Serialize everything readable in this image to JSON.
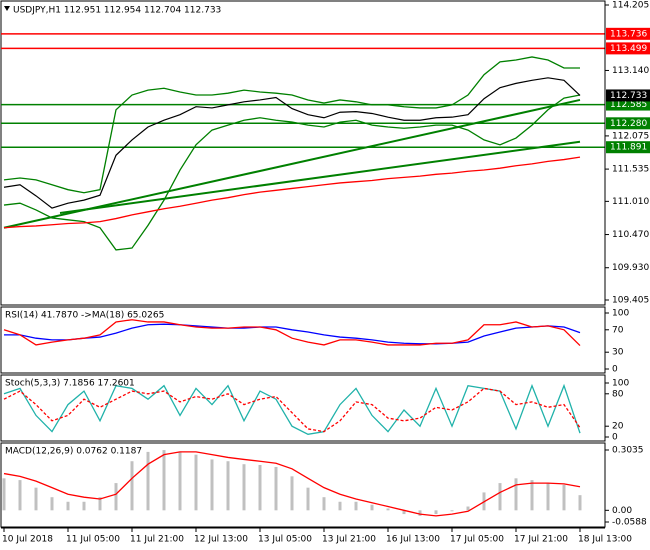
{
  "chart_data": [
    {
      "type": "line",
      "title": "USDJPY,H1  112.951 112.954 112.704 112.733",
      "ylim": [
        109.405,
        114.205
      ],
      "yticks": [
        114.205,
        {
          "value": 113.14,
          "label": "113.140"
        },
        112.075,
        111.535,
        {
          "value": 111.01,
          "label": "111.010"
        },
        {
          "value": 110.47,
          "label": "110.470"
        },
        {
          "value": 109.93,
          "label": "109.930"
        },
        109.405
      ],
      "levels": [
        {
          "value": 113.736,
          "color": "#ff0000"
        },
        {
          "value": 113.499,
          "color": "#ff0000"
        },
        {
          "value": 112.585,
          "color": "#008000"
        },
        {
          "value": 112.28,
          "label": "112.280",
          "color": "#008000"
        },
        {
          "value": 111.891,
          "color": "#008000"
        }
      ],
      "last_price": 112.733,
      "trendlines": [
        {
          "x": [
            0,
            36
          ],
          "values": [
            110.58,
            112.66
          ],
          "color": "#008000"
        },
        {
          "x": [
            3.5,
            36
          ],
          "values": [
            110.82,
            111.98
          ],
          "color": "#008000"
        }
      ],
      "series": [
        {
          "color": "#008000",
          "style": "line",
          "values": [
            111.36,
            111.39,
            111.36,
            111.28,
            111.2,
            111.15,
            111.2,
            112.5,
            112.74,
            112.82,
            112.85,
            112.79,
            112.74,
            112.74,
            112.77,
            112.82,
            112.79,
            112.77,
            112.74,
            112.66,
            112.61,
            112.66,
            112.63,
            112.58,
            112.58,
            112.55,
            112.53,
            112.53,
            112.58,
            112.74,
            113.07,
            113.28,
            113.31,
            113.36,
            113.31,
            113.18,
            113.18
          ]
        },
        {
          "color": "#008000",
          "style": "line",
          "values": [
            110.95,
            110.98,
            110.87,
            110.74,
            110.71,
            110.68,
            110.58,
            110.22,
            110.25,
            110.62,
            111.03,
            111.52,
            111.93,
            112.17,
            112.25,
            112.33,
            112.37,
            112.33,
            112.3,
            112.25,
            112.22,
            112.3,
            112.33,
            112.25,
            112.22,
            112.2,
            112.22,
            112.25,
            112.25,
            112.17,
            112.01,
            111.93,
            112.04,
            112.25,
            112.5,
            112.69,
            112.74
          ]
        },
        {
          "color": "#ff0000",
          "style": "line",
          "values": [
            110.58,
            110.6,
            110.61,
            110.63,
            110.65,
            110.66,
            110.68,
            110.73,
            110.79,
            110.84,
            110.89,
            110.93,
            110.98,
            111.03,
            111.07,
            111.12,
            111.16,
            111.19,
            111.22,
            111.25,
            111.28,
            111.31,
            111.33,
            111.35,
            111.38,
            111.4,
            111.42,
            111.45,
            111.47,
            111.5,
            111.52,
            111.55,
            111.59,
            111.62,
            111.66,
            111.69,
            111.73
          ]
        },
        {
          "color": "#000000",
          "style": "line",
          "values": [
            111.24,
            111.28,
            111.1,
            110.9,
            110.98,
            111.03,
            111.11,
            111.76,
            112.01,
            112.22,
            112.33,
            112.42,
            112.55,
            112.53,
            112.58,
            112.63,
            112.66,
            112.7,
            112.52,
            112.42,
            112.37,
            112.46,
            112.47,
            112.44,
            112.38,
            112.33,
            112.33,
            112.37,
            112.38,
            112.42,
            112.68,
            112.86,
            112.93,
            112.98,
            113.02,
            112.98,
            112.733
          ]
        }
      ]
    },
    {
      "type": "line",
      "title": "RSI(14) 41.7870  ->MA(18) 65.0265",
      "ylim": [
        0,
        100
      ],
      "yticks": [
        100,
        70,
        30,
        0
      ],
      "series": [
        {
          "color": "#0000ff",
          "style": "line",
          "values": [
            61,
            61,
            55,
            52,
            52,
            55,
            57,
            64,
            73,
            79,
            80,
            79,
            77,
            75,
            73,
            73,
            75,
            75,
            70,
            66,
            61,
            57,
            55,
            52,
            48,
            46,
            45,
            45,
            46,
            48,
            59,
            66,
            73,
            75,
            77,
            75,
            65.0265
          ]
        },
        {
          "color": "#ff0000",
          "style": "line",
          "values": [
            70,
            61,
            43,
            48,
            52,
            55,
            61,
            84,
            88,
            84,
            84,
            79,
            75,
            73,
            73,
            75,
            75,
            70,
            55,
            48,
            43,
            52,
            52,
            48,
            43,
            43,
            43,
            46,
            46,
            52,
            79,
            79,
            84,
            75,
            77,
            70,
            41.787
          ]
        }
      ]
    },
    {
      "type": "line",
      "title": "Stoch(5,3,3) 7.1856 17.2601",
      "ylim": [
        0,
        100
      ],
      "yticks": [
        100,
        80,
        20,
        0
      ],
      "series": [
        {
          "color": "#20b2aa",
          "style": "line",
          "values": [
            80,
            90,
            40,
            10,
            60,
            85,
            30,
            95,
            90,
            70,
            95,
            40,
            90,
            60,
            95,
            30,
            85,
            70,
            20,
            5,
            10,
            60,
            90,
            40,
            10,
            50,
            20,
            90,
            20,
            95,
            90,
            85,
            15,
            95,
            20,
            95,
            7.1856
          ]
        },
        {
          "color": "#ff0000",
          "style": "dashed",
          "values": [
            70,
            85,
            60,
            30,
            40,
            70,
            55,
            70,
            85,
            80,
            85,
            65,
            75,
            70,
            80,
            60,
            70,
            75,
            45,
            15,
            10,
            30,
            65,
            60,
            35,
            30,
            35,
            55,
            50,
            65,
            90,
            85,
            60,
            65,
            55,
            60,
            17.2601
          ]
        }
      ]
    },
    {
      "type": "bar",
      "title": "MACD(12,26,9) 0.0762 0.1187",
      "ylim": [
        -0.0588,
        0.3035
      ],
      "yticks": [
        0.3035,
        {
          "value": 0,
          "label": "0.00"
        },
        -0.0588
      ],
      "categories": [
        "10 Jul 2018",
        null,
        null,
        null,
        "11 Jul 05:00",
        null,
        null,
        null,
        "11 Jul 21:00",
        null,
        null,
        null,
        "12 Jul 13:00",
        null,
        null,
        null,
        "13 Jul 05:00",
        null,
        null,
        null,
        "13 Jul 21:00",
        null,
        null,
        null,
        "16 Jul 13:00",
        null,
        null,
        null,
        "17 Jul 05:00",
        null,
        null,
        null,
        "17 Jul 21:00",
        null,
        null,
        null,
        "18 Jul 13:00"
      ],
      "series": [
        {
          "color": "#c0c0c0",
          "style": "bar",
          "values": [
            0.161,
            0.152,
            0.114,
            0.066,
            0.043,
            0.043,
            0.066,
            0.137,
            0.247,
            0.294,
            0.303,
            0.294,
            0.28,
            0.256,
            0.247,
            0.232,
            0.228,
            0.218,
            0.171,
            0.114,
            0.066,
            0.043,
            0.043,
            0.028,
            0.009,
            -0.019,
            -0.028,
            -0.019,
            -0.005,
            0.019,
            0.09,
            0.137,
            0.161,
            0.152,
            0.137,
            0.128,
            0.0762
          ]
        },
        {
          "color": "#ff0000",
          "style": "line",
          "values": [
            0.185,
            0.171,
            0.147,
            0.114,
            0.081,
            0.066,
            0.057,
            0.081,
            0.161,
            0.232,
            0.28,
            0.294,
            0.294,
            0.28,
            0.266,
            0.256,
            0.247,
            0.237,
            0.209,
            0.161,
            0.114,
            0.081,
            0.057,
            0.038,
            0.019,
            0,
            -0.019,
            -0.028,
            -0.019,
            -0.005,
            0.043,
            0.09,
            0.128,
            0.137,
            0.137,
            0.133,
            0.1187
          ]
        }
      ]
    }
  ]
}
